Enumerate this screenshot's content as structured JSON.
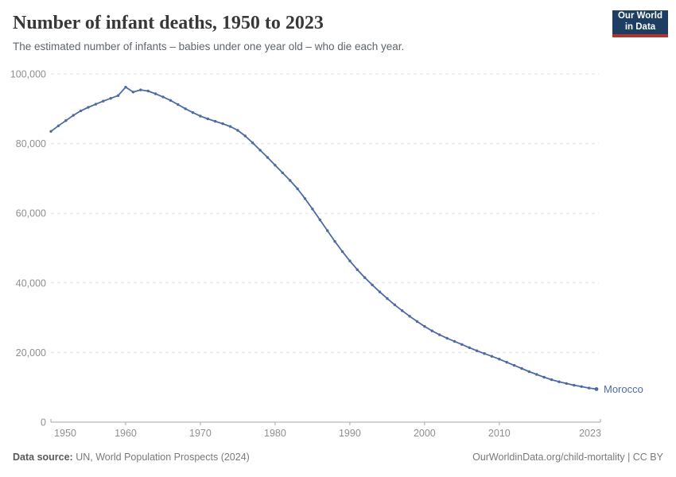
{
  "header": {
    "title": "Number of infant deaths, 1950 to 2023",
    "subtitle": "The estimated number of infants – babies under one year old – who die each year."
  },
  "logo": {
    "line1": "Our World",
    "line2": "in Data",
    "background_color": "#1d3d63",
    "stripe_color": "#b0342b"
  },
  "footer": {
    "source_label": "Data source:",
    "source_text": " UN, World Population Prospects (2024)",
    "right_text": "OurWorldinData.org/child-mortality | CC BY"
  },
  "chart_data": {
    "type": "line",
    "title": "Number of infant deaths, 1950 to 2023",
    "entity_label": "Morocco",
    "line_color": "#4d6ba3",
    "grid_color": "#e3e3e3",
    "axis_color": "#a6a6a6",
    "tick_label_color": "#8f8f8f",
    "xlabel": "",
    "ylabel": "",
    "xlim": [
      1950,
      2024
    ],
    "ylim": [
      0,
      100000
    ],
    "grid": true,
    "legend_position": "end-of-line",
    "ytick_values": [
      0,
      20000,
      40000,
      60000,
      80000,
      100000
    ],
    "ytick_labels": [
      "0",
      "20,000",
      "40,000",
      "60,000",
      "80,000",
      "100,000"
    ],
    "xtick_labels": [
      "1950",
      "1960",
      "1970",
      "1980",
      "1990",
      "2000",
      "2010",
      "2023"
    ],
    "xtick_years": [
      1950,
      1960,
      1970,
      1980,
      1990,
      2000,
      2010,
      2023
    ],
    "x": [
      1950,
      1951,
      1952,
      1953,
      1954,
      1955,
      1956,
      1957,
      1958,
      1959,
      1960,
      1961,
      1962,
      1963,
      1964,
      1965,
      1966,
      1967,
      1968,
      1969,
      1970,
      1971,
      1972,
      1973,
      1974,
      1975,
      1976,
      1977,
      1978,
      1979,
      1980,
      1981,
      1982,
      1983,
      1984,
      1985,
      1986,
      1987,
      1988,
      1989,
      1990,
      1991,
      1992,
      1993,
      1994,
      1995,
      1996,
      1997,
      1998,
      1999,
      2000,
      2001,
      2002,
      2003,
      2004,
      2005,
      2006,
      2007,
      2008,
      2009,
      2010,
      2011,
      2012,
      2013,
      2014,
      2015,
      2016,
      2017,
      2018,
      2019,
      2020,
      2021,
      2022,
      2023
    ],
    "series": [
      {
        "name": "Morocco",
        "values": [
          83500,
          85100,
          86600,
          88100,
          89400,
          90400,
          91300,
          92200,
          93000,
          93800,
          96200,
          94800,
          95400,
          95100,
          94300,
          93400,
          92400,
          91200,
          90000,
          88900,
          87900,
          87100,
          86400,
          85700,
          84900,
          83800,
          82200,
          80200,
          78100,
          76000,
          73800,
          71600,
          69400,
          67000,
          64200,
          61200,
          58100,
          55000,
          51900,
          49000,
          46300,
          43800,
          41500,
          39400,
          37400,
          35500,
          33700,
          32000,
          30400,
          28900,
          27500,
          26200,
          25100,
          24100,
          23200,
          22300,
          21400,
          20500,
          19700,
          18900,
          18100,
          17200,
          16300,
          15400,
          14500,
          13700,
          12900,
          12200,
          11600,
          11100,
          10600,
          10200,
          9800,
          9500
        ]
      }
    ]
  }
}
